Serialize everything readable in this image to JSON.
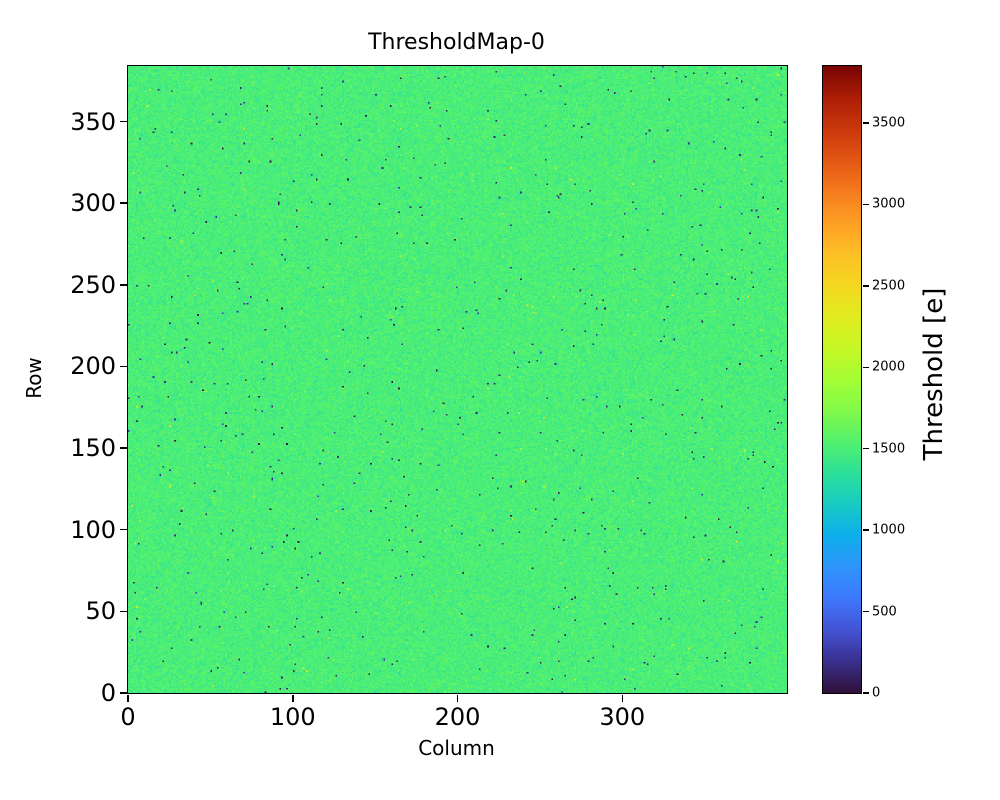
{
  "colors": {
    "background": "#ffffff",
    "axis": "#000000",
    "text": "#000000"
  },
  "chart_data": {
    "type": "heatmap",
    "title": "ThresholdMap-0",
    "xlabel": "Column",
    "ylabel": "Row",
    "x_range": [
      0,
      400
    ],
    "y_range": [
      0,
      384
    ],
    "x_ticks": [
      0,
      100,
      200,
      300
    ],
    "y_ticks": [
      0,
      50,
      100,
      150,
      200,
      250,
      300,
      350
    ],
    "grid": false,
    "legend": false,
    "colorbar": {
      "label": "Threshold [e]",
      "ticks": [
        0,
        500,
        1000,
        1500,
        2000,
        2500,
        3000,
        3500
      ],
      "vmin": 0,
      "vmax": 3850,
      "colormap": "turbo",
      "colormap_stops": [
        [
          0.0,
          "#30123b"
        ],
        [
          0.05,
          "#3a3090"
        ],
        [
          0.1,
          "#4454d6"
        ],
        [
          0.15,
          "#3e78fd"
        ],
        [
          0.2,
          "#2e95fb"
        ],
        [
          0.25,
          "#0faeec"
        ],
        [
          0.3,
          "#18cbc4"
        ],
        [
          0.35,
          "#2ce09a"
        ],
        [
          0.4,
          "#53f16f"
        ],
        [
          0.45,
          "#81fa49"
        ],
        [
          0.5,
          "#a5fe36"
        ],
        [
          0.55,
          "#c6f825"
        ],
        [
          0.6,
          "#e1ec20"
        ],
        [
          0.65,
          "#f4d820"
        ],
        [
          0.7,
          "#fdc025"
        ],
        [
          0.75,
          "#fea024"
        ],
        [
          0.8,
          "#f57c1e"
        ],
        [
          0.85,
          "#e45814"
        ],
        [
          0.9,
          "#cb380c"
        ],
        [
          0.95,
          "#ad1f06"
        ],
        [
          1.0,
          "#7a0403"
        ]
      ]
    },
    "distribution": {
      "description": "Per-pixel threshold map, nearly uniform around 1500 e with fine noise texture and sparse near-zero (dark) outlier pixels plus rare high (yellowish) pixels",
      "mean_threshold_e": 1500,
      "sigma_e": 55,
      "outlier_fraction": 0.004,
      "outlier_value_range": [
        0,
        250
      ],
      "hot_fraction": 0.0008,
      "hot_value_range": [
        1900,
        2450
      ],
      "seed": 42
    }
  }
}
